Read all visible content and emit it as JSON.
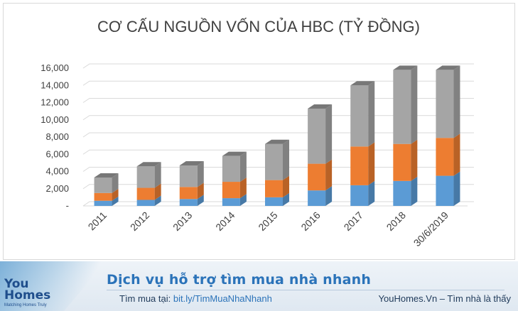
{
  "chart_data": {
    "type": "bar",
    "stacked": true,
    "style": "3d",
    "title": "CƠ CẤU NGUỒN VỐN CỦA HBC (TỶ ĐỒNG)",
    "categories": [
      "2011",
      "2012",
      "2013",
      "2014",
      "2015",
      "2016",
      "2017",
      "2018",
      "30/6/2019"
    ],
    "series": [
      {
        "values": [
          600,
          700,
          800,
          900,
          1000,
          1800,
          2400,
          2900,
          3500
        ],
        "color": "#5b9bd5"
      },
      {
        "values": [
          900,
          1400,
          1400,
          1900,
          2000,
          3100,
          4500,
          4300,
          4400
        ],
        "color": "#ed7d31"
      },
      {
        "values": [
          1800,
          2500,
          2500,
          3000,
          4200,
          6400,
          7100,
          8600,
          7900
        ],
        "color": "#a5a5a5"
      }
    ],
    "ylim": [
      0,
      16000
    ],
    "yticks": [
      "-",
      "2,000",
      "4,000",
      "6,000",
      "8,000",
      "10,000",
      "12,000",
      "14,000",
      "16,000"
    ],
    "grid": true,
    "legend": "none"
  },
  "banner": {
    "logo_line1": "You",
    "logo_line2": "Homes",
    "logo_tagline": "Matching Homes Truly",
    "headline": "Dịch vụ hỗ trợ tìm mua nhà nhanh",
    "find_label": "Tìm mua tại:",
    "find_link": "bit.ly/TimMuaNhaNhanh",
    "site": "YouHomes.Vn – Tìm nhà là thấy"
  }
}
